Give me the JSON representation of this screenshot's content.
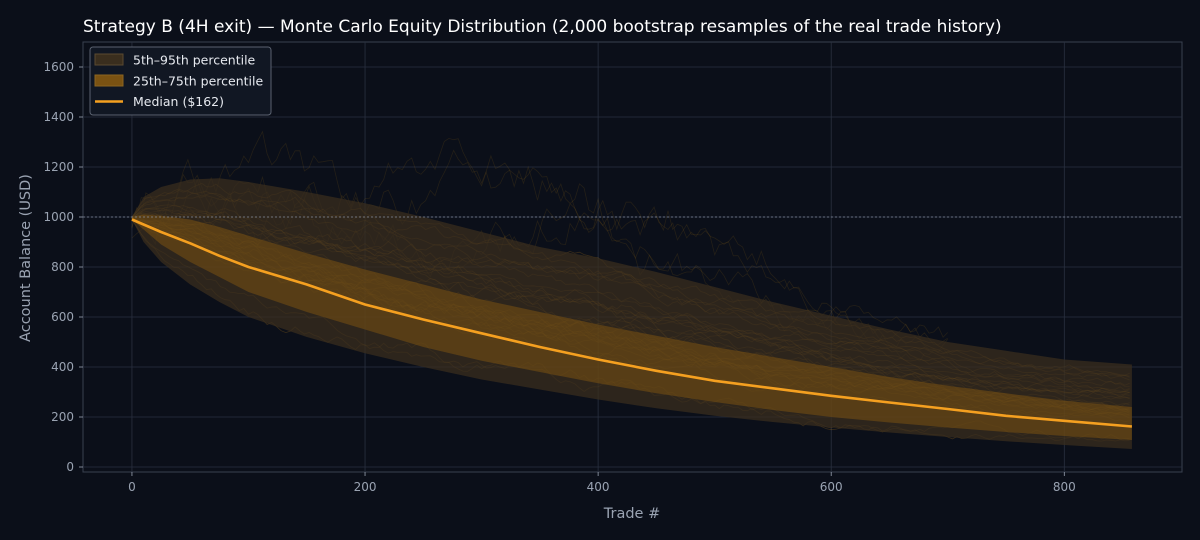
{
  "chart_data": {
    "type": "area",
    "title": "Strategy B (4H exit) — Monte Carlo Equity Distribution (2,000 bootstrap resamples of the real trade history)",
    "xlabel": "Trade #",
    "ylabel": "Account Balance (USD)",
    "xlim": [
      -42,
      901
    ],
    "ylim": [
      -20,
      1700
    ],
    "x_ticks": [
      0,
      200,
      400,
      600,
      800
    ],
    "y_ticks": [
      0,
      200,
      400,
      600,
      800,
      1000,
      1200,
      1400,
      1600
    ],
    "grid": true,
    "reference_line": 1000,
    "legend_position": "top-left",
    "x": [
      0,
      10,
      25,
      50,
      75,
      100,
      150,
      200,
      250,
      300,
      350,
      400,
      450,
      500,
      550,
      600,
      650,
      700,
      750,
      800,
      858
    ],
    "series": [
      {
        "name": "5th–95th percentile",
        "kind": "band",
        "lower": [
          990,
          900,
          820,
          730,
          660,
          600,
          520,
          455,
          400,
          350,
          310,
          270,
          235,
          205,
          180,
          158,
          138,
          120,
          103,
          88,
          72
        ],
        "upper": [
          1000,
          1080,
          1120,
          1150,
          1155,
          1140,
          1100,
          1055,
          1000,
          940,
          880,
          835,
          780,
          720,
          660,
          605,
          550,
          500,
          465,
          430,
          410
        ],
        "color": "#3a2e1e"
      },
      {
        "name": "25th–75th percentile",
        "kind": "band",
        "lower": [
          990,
          950,
          890,
          820,
          760,
          700,
          620,
          550,
          480,
          425,
          380,
          335,
          295,
          260,
          228,
          200,
          178,
          158,
          140,
          124,
          108
        ],
        "upper": [
          1000,
          1010,
          1005,
          990,
          960,
          925,
          855,
          790,
          730,
          670,
          620,
          570,
          525,
          480,
          440,
          400,
          360,
          325,
          295,
          265,
          240
        ],
        "color": "#7a5212"
      },
      {
        "name": "Median ($162)",
        "kind": "line",
        "values": [
          990,
          970,
          940,
          895,
          845,
          800,
          730,
          650,
          590,
          535,
          480,
          430,
          385,
          345,
          315,
          285,
          258,
          232,
          205,
          185,
          162
        ],
        "color": "#f5a020"
      }
    ]
  }
}
